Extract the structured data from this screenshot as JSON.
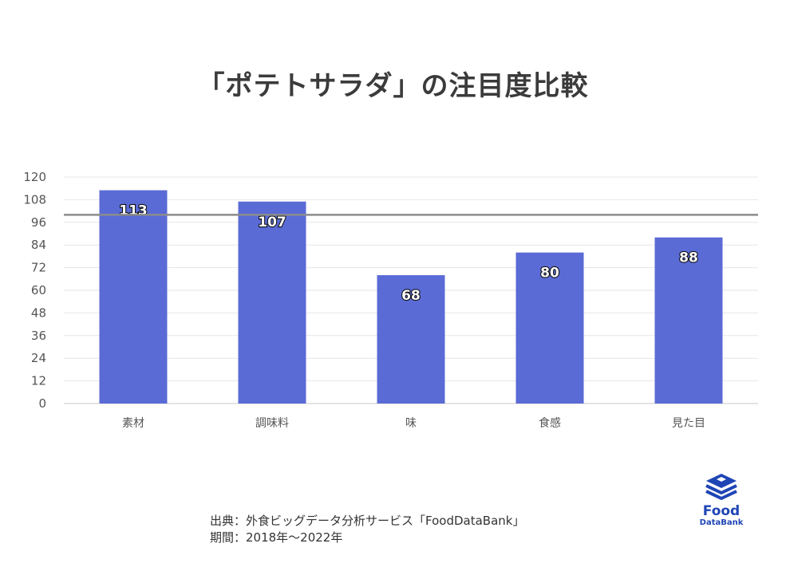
{
  "title": "「ポテトサラダ」の注目度比較",
  "source_line1": "出典：外食ビッグデータ分析サービス「FoodDataBank」",
  "source_line2": "期間：2018年〜2022年",
  "logo": {
    "name": "Food",
    "sub": "DataBank"
  },
  "colors": {
    "bar": "#5a6bd6",
    "reference_line": "#8c8c8c",
    "grid": "#e6e6e6",
    "logo": "#1f45b5"
  },
  "chart_data": {
    "type": "bar",
    "categories": [
      "素材",
      "調味料",
      "味",
      "食感",
      "見た目"
    ],
    "values": [
      113,
      107,
      68,
      80,
      88
    ],
    "yticks": [
      0,
      12,
      24,
      36,
      48,
      60,
      72,
      84,
      96,
      108,
      120
    ],
    "ylim": [
      0,
      120
    ],
    "reference_line": 100,
    "grid": true,
    "xlabel": "",
    "ylabel": ""
  }
}
